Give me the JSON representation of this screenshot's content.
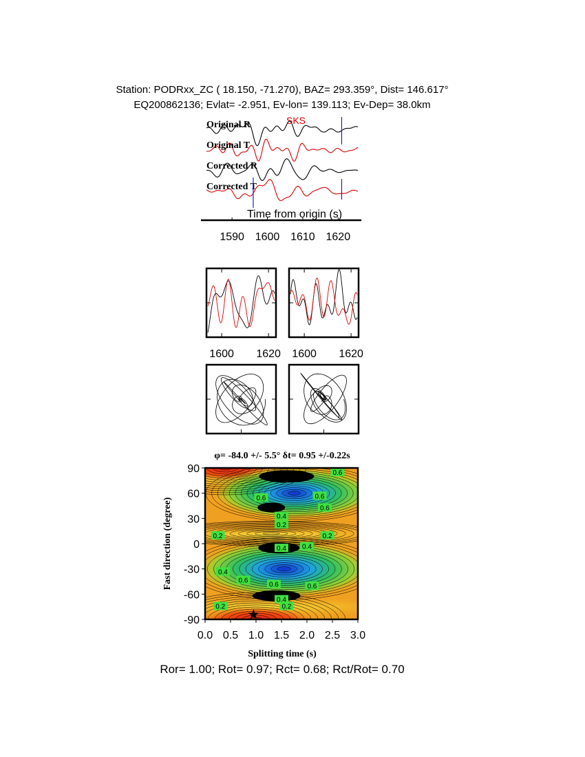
{
  "header": {
    "line1": "Station: PODRxx_ZC (  18.150,  -71.270), BAZ=  293.359°, Dist=  146.617°",
    "line2": "EQ200862136; Evlat=  -2.951, Ev-lon= 139.113; Ev-Dep= 38.0km"
  },
  "chart_data": [
    {
      "type": "waveform",
      "traces": [
        "Original R",
        "Original T",
        "Corrected R",
        "Corrected T"
      ],
      "trace_colors": [
        "#000000",
        "#dd0000",
        "#000000",
        "#dd0000"
      ],
      "phase": "SKS",
      "xlabel": "Time from origin (s)",
      "xlim": [
        1582,
        1625
      ],
      "xticks": [
        1590,
        1600,
        1610,
        1620
      ],
      "window_markers": [
        1596,
        1621
      ]
    },
    {
      "type": "overlay",
      "xlim": [
        1593.5,
        1623.2
      ],
      "xticks": [
        1600,
        1620
      ]
    },
    {
      "type": "overlay",
      "xlim": [
        1593.5,
        1623.2
      ],
      "xticks": [
        1600,
        1620
      ]
    },
    {
      "type": "contour",
      "title": "φ= -84.0 +/- 5.5° δt= 0.95 +/-0.22s",
      "xlabel": "Splitting time (s)",
      "ylabel": "Fast direction (degree)",
      "xlim": [
        0,
        3
      ],
      "ylim": [
        -90,
        90
      ],
      "xticks": [
        {
          "value": 0,
          "label": "0.0"
        },
        {
          "value": 0.5,
          "label": "0.5"
        },
        {
          "value": 1,
          "label": "1.0"
        },
        {
          "value": 1.5,
          "label": "1.5"
        },
        {
          "value": 2,
          "label": "2.0"
        },
        {
          "value": 2.5,
          "label": "2.5"
        },
        {
          "value": 3,
          "label": "3.0"
        }
      ],
      "yticks": [
        90,
        60,
        30,
        0,
        -30,
        -60,
        -90
      ],
      "best": {
        "x": 0.95,
        "y": -84
      },
      "contour_labels": [
        {
          "x": 1.1,
          "y": 55,
          "level": 0.6
        },
        {
          "x": 2.6,
          "y": 85,
          "level": 0.6
        },
        {
          "x": 2.25,
          "y": 57,
          "level": 0.6
        },
        {
          "x": 1.5,
          "y": 33,
          "level": 0.4
        },
        {
          "x": 1.5,
          "y": 23,
          "level": 0.2
        },
        {
          "x": 2.35,
          "y": 43,
          "level": 0.6
        },
        {
          "x": 0.25,
          "y": 10,
          "level": 0.2
        },
        {
          "x": 2.4,
          "y": 10,
          "level": 0.2
        },
        {
          "x": 1.5,
          "y": -5,
          "level": 0.4
        },
        {
          "x": 2.0,
          "y": -3,
          "level": 0.4
        },
        {
          "x": 0.35,
          "y": -33,
          "level": 0.4
        },
        {
          "x": 0.75,
          "y": -43,
          "level": 0.6
        },
        {
          "x": 1.35,
          "y": -48,
          "level": 0.6
        },
        {
          "x": 2.1,
          "y": -50,
          "level": 0.6
        },
        {
          "x": 1.5,
          "y": -66,
          "level": 0.4
        },
        {
          "x": 1.6,
          "y": -74,
          "level": 0.2
        },
        {
          "x": 0.3,
          "y": -74,
          "level": 0.2
        }
      ]
    }
  ],
  "footer": "Ror= 1.00; Rot= 0.97; Rct= 0.68; Rct/Rot= 0.70"
}
